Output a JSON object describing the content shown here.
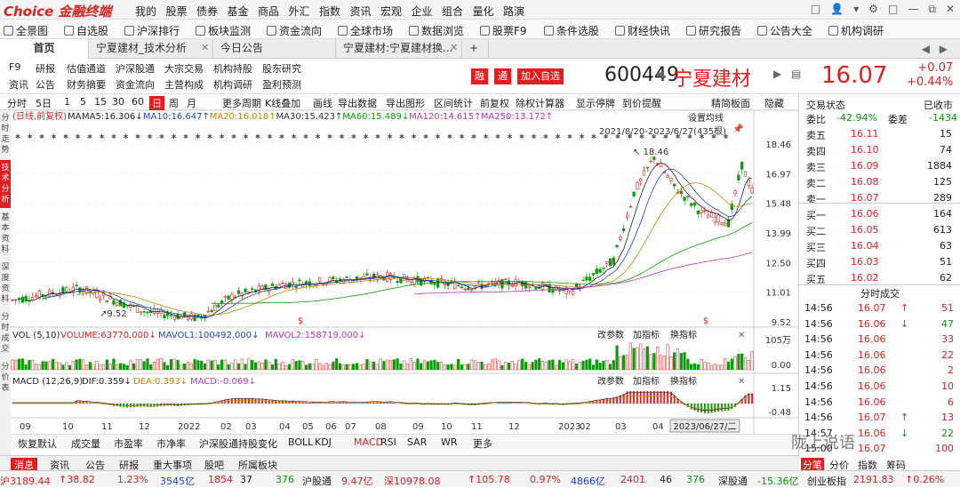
{
  "app": {
    "logo": "Choice 金融终端",
    "menu": [
      "我的",
      "股票",
      "债券",
      "基金",
      "商品",
      "外汇",
      "指数",
      "资讯",
      "宏观",
      "企业",
      "组合",
      "量化",
      "路演"
    ],
    "win_icons": [
      "□",
      "👤",
      "▾",
      "⚙",
      "□",
      "—",
      "⧉",
      "✕"
    ]
  },
  "toolbar": [
    "全景图",
    "自选股",
    "沪深排行",
    "板块监测",
    "资金流向",
    "全球市场",
    "数据浏览",
    "股票F9",
    "条件选股",
    "财经快讯",
    "研究报告",
    "公告大全",
    "机构调研"
  ],
  "tabs": [
    "首页",
    "宁夏建材_技术分析",
    "今日公告",
    "宁夏建材:宁夏建材换...",
    "+"
  ],
  "tab_nav": [
    "◀",
    "▶"
  ],
  "info_links": {
    "row1": [
      "F9",
      "研报",
      "估值通道",
      "沪深股通",
      "大宗交易",
      "机构持股",
      "股东研究"
    ],
    "row2": [
      "资讯",
      "公告",
      "财务摘要",
      "资金流向",
      "主营构成",
      "机构调研",
      "盈利预测"
    ]
  },
  "tags": [
    "融",
    "通",
    "加入自选"
  ],
  "stock": {
    "code": "600449",
    "name": "宁夏建材",
    "price": "16.07",
    "change": "+0.07",
    "change_pct": "+0.44%"
  },
  "chart_toolbar": [
    "分时",
    "5日",
    "1",
    "5",
    "15",
    "30",
    "60",
    "日",
    "周",
    "月",
    "更多周期",
    "K线叠加",
    "画线",
    "导出数据",
    "导出图形",
    "区间统计",
    "前复权",
    "除权计算器",
    "显示停牌",
    "到价提醒",
    "精简板面",
    "隐藏"
  ],
  "chart_toolbar_selected": "日",
  "left_vtabs": [
    "分时走势",
    "技术分析",
    "基本资料",
    "深度资料",
    "分时成交",
    "分价表"
  ],
  "ma_legend": {
    "head": "(日线,前复权)",
    "ma": "MA",
    "items": [
      {
        "t": "MA5:16.306↓",
        "c": "#222222"
      },
      {
        "t": "MA10:16.647↑",
        "c": "#1a46c8"
      },
      {
        "t": "MA20:16.018↑",
        "c": "#d08000"
      },
      {
        "t": "MA30:15.423↑",
        "c": "#333333"
      },
      {
        "t": "MA60:15.489↓",
        "c": "#0a9a0a"
      },
      {
        "t": "MA120:14.615↑",
        "c": "#c030c0"
      },
      {
        "t": "MA250:13.172↑",
        "c": "#c030c0"
      }
    ]
  },
  "chart_labels": {
    "setting": "设置均线",
    "range": "2021/8/20-2023/6/27(435根)",
    "high_mark": "18.46",
    "low_mark": "9.52",
    "adjust": "改参数",
    "add": "加指标",
    "switch": "换指标",
    "date_box": "2023/06/27/二"
  },
  "vol_legend": {
    "t": "VOL (5,10)",
    "v": "VOLUME:63770.000↓",
    "m1": "MAVOL1:100492.000↓",
    "m2": "MAVOL2:158719.000↓"
  },
  "macd_legend": {
    "t": "MACD (12,26,9)",
    "dif": "DIF:0.359↓",
    "dea": "DEA:0.393↓",
    "macd": "MACD:-0.069↓"
  },
  "chart_data": {
    "type": "candlestick",
    "symbol": "600449",
    "name": "宁夏建材",
    "range": "2021/8/20-2023/6/27",
    "bars": 435,
    "price_axis": [
      "18.46",
      "16.97",
      "15.48",
      "13.99",
      "12.50",
      "11.01",
      "9.52"
    ],
    "ylim": [
      9.52,
      18.46
    ],
    "vol_axis": [
      "105万",
      "0.00"
    ],
    "macd_axis": [
      "1.15",
      "-0.48"
    ],
    "x_ticks": [
      "09",
      "10",
      "11",
      "12",
      "2022",
      "02",
      "03",
      "04",
      "05",
      "06",
      "07",
      "08",
      "09",
      "10",
      "11",
      "12",
      "2023",
      "02",
      "03",
      "04"
    ],
    "high": 18.46,
    "low": 9.52,
    "ma": {
      "MA5": 16.306,
      "MA10": 16.647,
      "MA20": 16.018,
      "MA30": 15.423,
      "MA60": 15.489,
      "MA120": 14.615,
      "MA250": 13.172
    },
    "vol": {
      "volume": 63770.0,
      "mavol1": 100492.0,
      "mavol2": 158719.0
    },
    "macd": {
      "dif": 0.359,
      "dea": 0.393,
      "macd": -0.069
    }
  },
  "bottom_tabs": [
    "恢复默认",
    "成交量",
    "市盈率",
    "市净率",
    "沪深股通持股变化",
    "BOLL",
    "KDJ",
    "MACD",
    "RSI",
    "SAR",
    "WR",
    "更多"
  ],
  "bottom_tab_selected": "MACD",
  "right_panel": {
    "status_label": "交易状态",
    "status_value": "已收市",
    "wei_label": "委比",
    "wei_pct": "-42.94%",
    "wei_diff_label": "委差",
    "wei_diff": "-1434",
    "asks": [
      {
        "l": "卖五",
        "p": "16.11",
        "v": "15"
      },
      {
        "l": "卖四",
        "p": "16.10",
        "v": "74"
      },
      {
        "l": "卖三",
        "p": "16.09",
        "v": "1884"
      },
      {
        "l": "卖二",
        "p": "16.08",
        "v": "125"
      },
      {
        "l": "卖一",
        "p": "16.07",
        "v": "289"
      }
    ],
    "bids": [
      {
        "l": "买一",
        "p": "16.06",
        "v": "164"
      },
      {
        "l": "买二",
        "p": "16.05",
        "v": "613"
      },
      {
        "l": "买三",
        "p": "16.04",
        "v": "63"
      },
      {
        "l": "买四",
        "p": "16.03",
        "v": "51"
      },
      {
        "l": "买五",
        "p": "16.02",
        "v": "62"
      }
    ],
    "ticks_title": "分时成交",
    "ticks": [
      {
        "t": "14:56",
        "p": "16.07",
        "a": "↑",
        "v": "51"
      },
      {
        "t": "14:56",
        "p": "16.06",
        "a": "↓",
        "v": "47"
      },
      {
        "t": "14:56",
        "p": "16.06",
        "a": "",
        "v": "33"
      },
      {
        "t": "14:56",
        "p": "16.06",
        "a": "",
        "v": "22"
      },
      {
        "t": "14:56",
        "p": "16.06",
        "a": "",
        "v": "2"
      },
      {
        "t": "14:56",
        "p": "16.06",
        "a": "",
        "v": "10"
      },
      {
        "t": "14:56",
        "p": "16.06",
        "a": "",
        "v": "6"
      },
      {
        "t": "14:56",
        "p": "16.07",
        "a": "↑",
        "v": "13"
      },
      {
        "t": "14:57",
        "p": "16.06",
        "a": "↓",
        "v": "22"
      },
      {
        "t": "15:00",
        "p": "16.07",
        "a": "",
        "v": "100"
      }
    ],
    "foot_tabs": [
      "展开",
      "分笔",
      "分价",
      "指数",
      "筹码"
    ]
  },
  "news_tabs": [
    "消息",
    "资讯",
    "公告",
    "研报",
    "重大事项",
    "股吧",
    "所属板块"
  ],
  "status": {
    "sh_index": "沪3189.44",
    "sh_chg": "↑38.82",
    "sh_pct": "1.23%",
    "sh_amt": "3545亿",
    "sh_up": "1854",
    "sh_flat": "37",
    "sh_down": "376",
    "hgt_label": "沪股通",
    "hgt_val": "9.47亿",
    "sz_index": "深10978.08",
    "sz_chg": "↑105.78",
    "sz_pct": "0.97%",
    "sz_amt": "4866亿",
    "sz_up": "2401",
    "sz_flat": "46",
    "sz_down": "376",
    "sgt_label": "深股通",
    "sgt_val": "-15.36亿",
    "cyb_label": "创业板指",
    "cyb_val": "2191.83",
    "cyb_pct": "↑0.26%"
  },
  "watermark": "陇上说语",
  "colors": {
    "up": "#e02020",
    "down": "#0a9a0a",
    "accent": "#e02020"
  }
}
